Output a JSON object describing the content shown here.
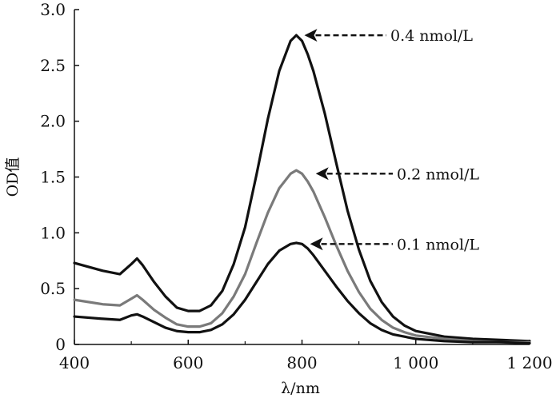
{
  "chart_data": {
    "type": "line",
    "title": "",
    "xlabel": "λ/nm",
    "ylabel": "OD值",
    "xlim": [
      400,
      1200
    ],
    "ylim": [
      0,
      3.0
    ],
    "grid": false,
    "x_ticks": [
      400,
      600,
      800,
      1000,
      1200
    ],
    "x_tick_labels": [
      "400",
      "600",
      "800",
      "1 000",
      "1 200"
    ],
    "y_ticks": [
      0,
      0.5,
      1.0,
      1.5,
      2.0,
      2.5,
      3.0
    ],
    "y_tick_labels": [
      "0",
      "0.5",
      "1.0",
      "1.5",
      "2.0",
      "2.5",
      "3.0"
    ],
    "series": [
      {
        "name": "0.4 nmol/L",
        "color": "#111111",
        "x": [
          400,
          450,
          480,
          500,
          510,
          520,
          540,
          560,
          580,
          600,
          620,
          640,
          660,
          680,
          700,
          720,
          740,
          760,
          780,
          790,
          800,
          810,
          820,
          840,
          860,
          880,
          900,
          920,
          940,
          960,
          980,
          1000,
          1050,
          1100,
          1150,
          1200
        ],
        "y": [
          0.73,
          0.66,
          0.63,
          0.72,
          0.77,
          0.71,
          0.56,
          0.43,
          0.33,
          0.3,
          0.3,
          0.35,
          0.48,
          0.72,
          1.05,
          1.52,
          2.02,
          2.45,
          2.72,
          2.77,
          2.72,
          2.6,
          2.45,
          2.07,
          1.63,
          1.2,
          0.85,
          0.57,
          0.38,
          0.25,
          0.17,
          0.12,
          0.07,
          0.05,
          0.04,
          0.03
        ]
      },
      {
        "name": "0.2 nmol/L",
        "color": "#7a7a7a",
        "x": [
          400,
          450,
          480,
          500,
          510,
          520,
          540,
          560,
          580,
          600,
          620,
          640,
          660,
          680,
          700,
          720,
          740,
          760,
          780,
          790,
          800,
          810,
          820,
          840,
          860,
          880,
          900,
          920,
          940,
          960,
          980,
          1000,
          1050,
          1100,
          1150,
          1200
        ],
        "y": [
          0.4,
          0.36,
          0.35,
          0.41,
          0.44,
          0.4,
          0.31,
          0.24,
          0.18,
          0.16,
          0.16,
          0.19,
          0.28,
          0.43,
          0.63,
          0.91,
          1.18,
          1.4,
          1.53,
          1.56,
          1.53,
          1.46,
          1.37,
          1.14,
          0.89,
          0.66,
          0.47,
          0.32,
          0.22,
          0.15,
          0.11,
          0.08,
          0.05,
          0.03,
          0.02,
          0.02
        ]
      },
      {
        "name": "0.1 nmol/L",
        "color": "#111111",
        "x": [
          400,
          450,
          480,
          500,
          510,
          520,
          540,
          560,
          580,
          600,
          620,
          640,
          660,
          680,
          700,
          720,
          740,
          760,
          780,
          790,
          800,
          810,
          820,
          840,
          860,
          880,
          900,
          920,
          940,
          960,
          980,
          1000,
          1050,
          1100,
          1150,
          1200
        ],
        "y": [
          0.25,
          0.23,
          0.22,
          0.26,
          0.27,
          0.25,
          0.2,
          0.15,
          0.12,
          0.11,
          0.11,
          0.13,
          0.18,
          0.27,
          0.4,
          0.56,
          0.72,
          0.84,
          0.9,
          0.91,
          0.9,
          0.86,
          0.8,
          0.66,
          0.52,
          0.39,
          0.28,
          0.19,
          0.13,
          0.09,
          0.07,
          0.05,
          0.03,
          0.02,
          0.02,
          0.01
        ]
      }
    ],
    "annotations": [
      {
        "text": "0.4 nmol/L",
        "target_x": 800,
        "target_y": 2.77
      },
      {
        "text": "0.2 nmol/L",
        "target_x": 820,
        "target_y": 1.53
      },
      {
        "text": "0.1 nmol/L",
        "target_x": 810,
        "target_y": 0.9
      }
    ]
  }
}
